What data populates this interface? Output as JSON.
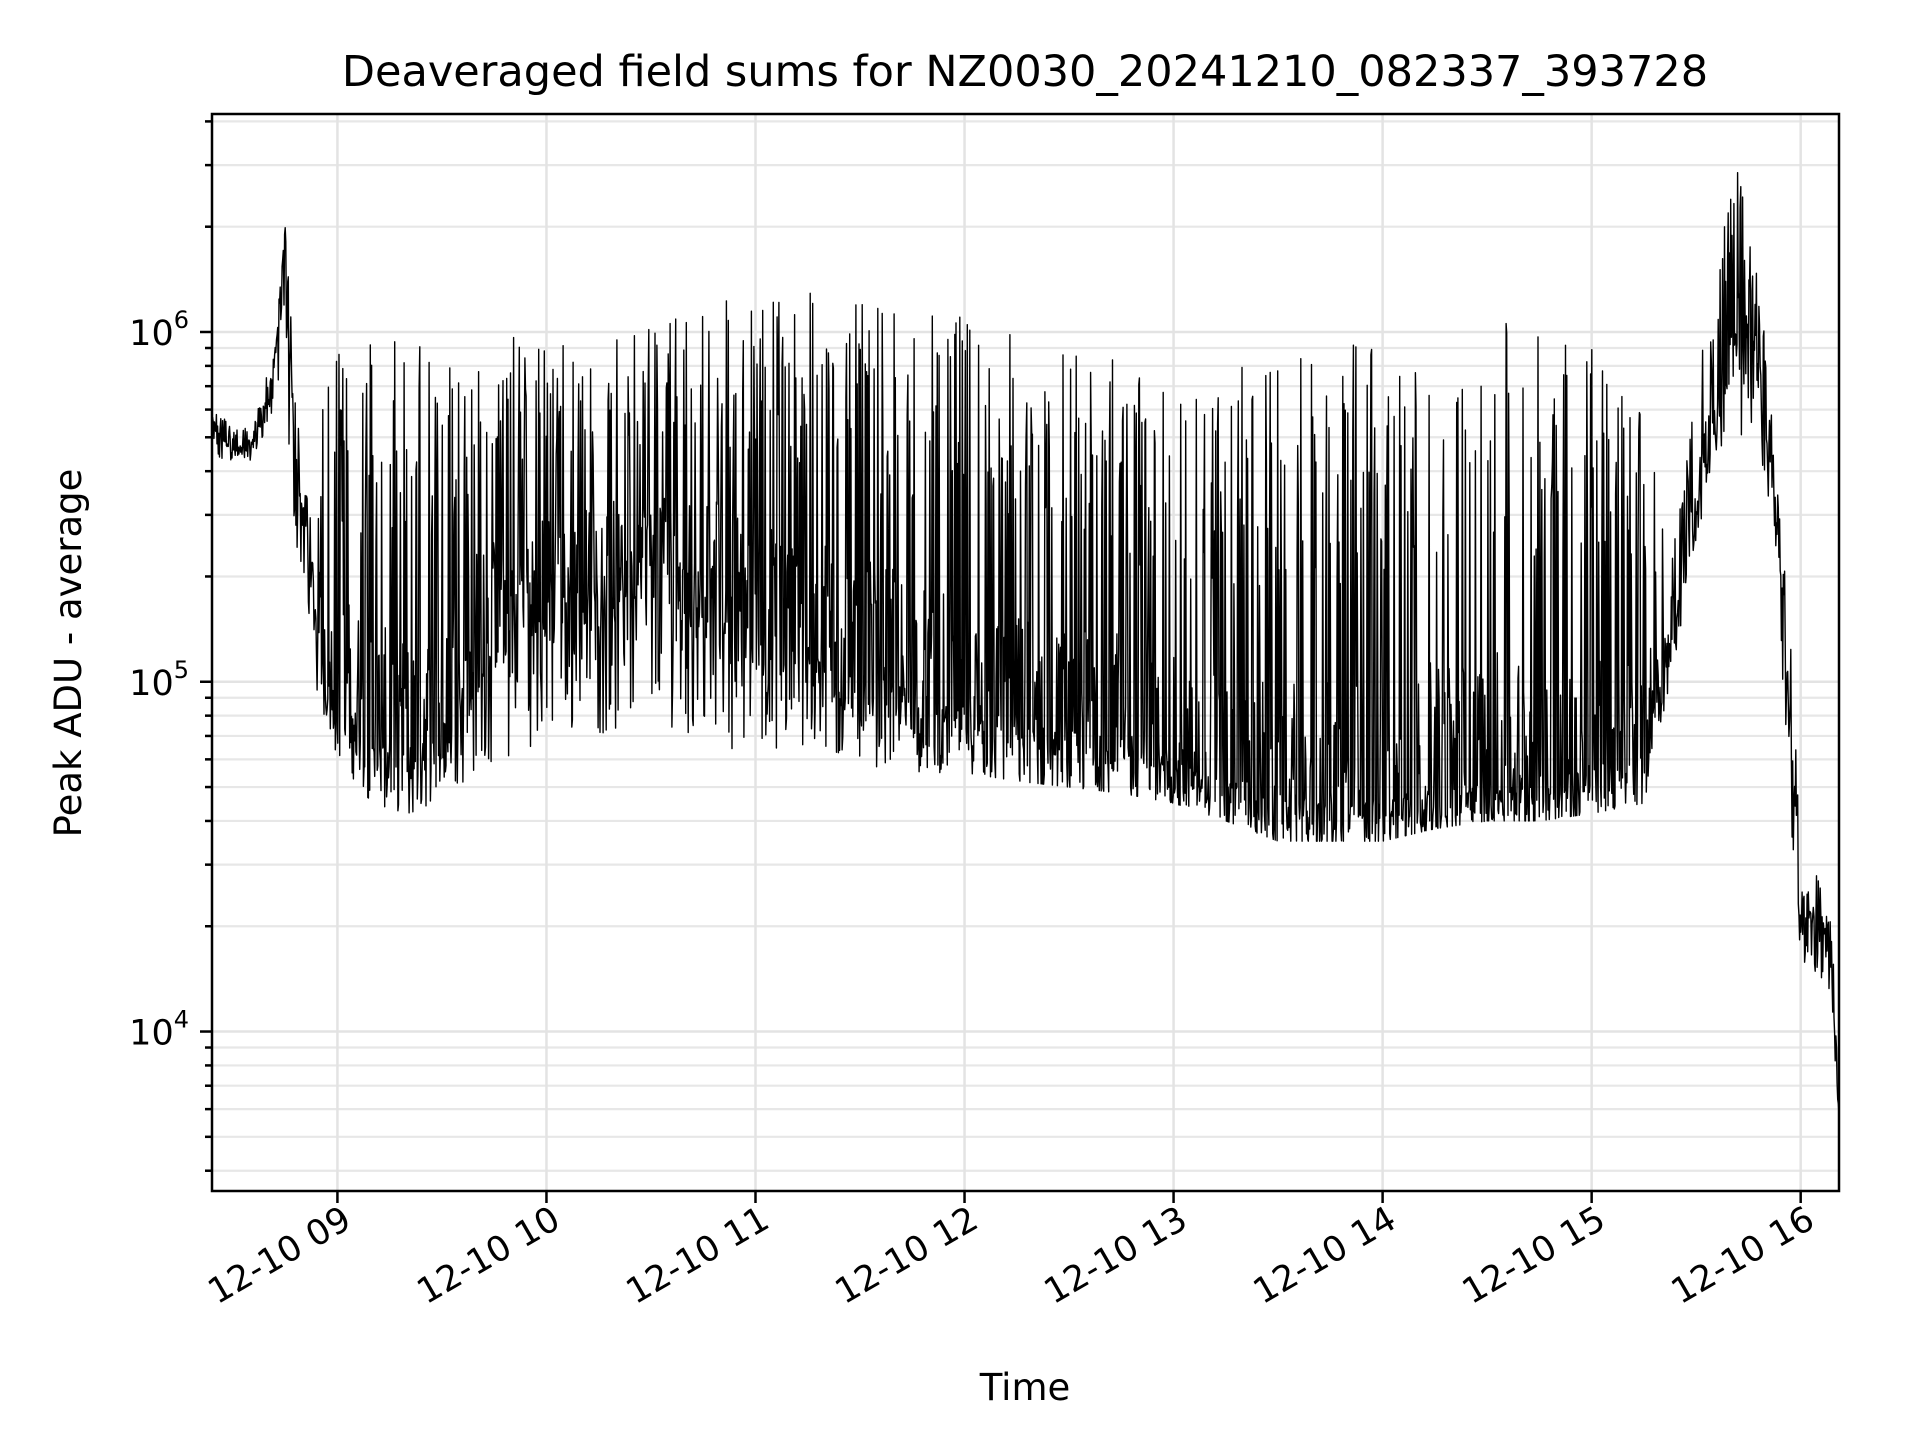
{
  "chart_data": {
    "type": "line",
    "title": "Deaveraged field sums for NZ0030_20241210_082337_393728",
    "xlabel": "Time",
    "ylabel": "Peak ADU - average",
    "y_scale": "log",
    "ylim": [
      3500,
      4200000
    ],
    "xlim": [
      "2024-12-10 08:24",
      "2024-12-10 16:11"
    ],
    "x_ticks": [
      "12-10 09",
      "12-10 10",
      "12-10 11",
      "12-10 12",
      "12-10 13",
      "12-10 14",
      "12-10 15",
      "12-10 16"
    ],
    "y_ticks": [
      {
        "base": "10",
        "exp": "4",
        "value": 10000
      },
      {
        "base": "10",
        "exp": "5",
        "value": 100000
      },
      {
        "base": "10",
        "exp": "6",
        "value": 1000000
      }
    ],
    "grid": true,
    "line_color": "#000000",
    "series": [
      {
        "x": [
          "2024-12-10 08:24",
          "2024-12-10 08:30",
          "2024-12-10 08:36",
          "2024-12-10 08:42",
          "2024-12-10 08:45",
          "2024-12-10 08:48",
          "2024-12-10 08:51",
          "2024-12-10 08:54",
          "2024-12-10 09:00",
          "2024-12-10 09:10",
          "2024-12-10 09:20",
          "2024-12-10 09:30",
          "2024-12-10 09:40",
          "2024-12-10 09:50",
          "2024-12-10 10:00",
          "2024-12-10 10:15",
          "2024-12-10 10:30",
          "2024-12-10 10:45",
          "2024-12-10 11:00",
          "2024-12-10 11:15",
          "2024-12-10 11:30",
          "2024-12-10 11:45",
          "2024-12-10 12:00",
          "2024-12-10 12:15",
          "2024-12-10 12:30",
          "2024-12-10 12:45",
          "2024-12-10 13:00",
          "2024-12-10 13:15",
          "2024-12-10 13:30",
          "2024-12-10 13:45",
          "2024-12-10 14:00",
          "2024-12-10 14:15",
          "2024-12-10 14:30",
          "2024-12-10 14:45",
          "2024-12-10 15:00",
          "2024-12-10 15:15",
          "2024-12-10 15:25",
          "2024-12-10 15:35",
          "2024-12-10 15:42",
          "2024-12-10 15:48",
          "2024-12-10 15:53",
          "2024-12-10 15:58",
          "2024-12-10 16:00",
          "2024-12-10 16:05",
          "2024-12-10 16:09",
          "2024-12-10 16:11"
        ],
        "y": [
          550000,
          460000,
          480000,
          800000,
          2000000,
          400000,
          270000,
          150000,
          110000,
          80000,
          70000,
          90000,
          150000,
          180000,
          200000,
          220000,
          250000,
          230000,
          180000,
          160000,
          130000,
          110000,
          90000,
          85000,
          80000,
          75000,
          65000,
          55000,
          52000,
          48000,
          50000,
          55000,
          58000,
          60000,
          62000,
          70000,
          180000,
          600000,
          1100000,
          800000,
          300000,
          60000,
          20000,
          22000,
          16000,
          5000
        ],
        "low": [
          400000,
          430000,
          430000,
          600000,
          600000,
          250000,
          180000,
          90000,
          60000,
          45000,
          42000,
          45000,
          55000,
          60000,
          70000,
          70000,
          75000,
          70000,
          60000,
          60000,
          58000,
          55000,
          55000,
          52000,
          50000,
          48000,
          45000,
          40000,
          35000,
          35000,
          35000,
          38000,
          40000,
          40000,
          42000,
          45000,
          130000,
          450000,
          500000,
          500000,
          200000,
          30000,
          15000,
          14000,
          12000,
          4000
        ],
        "high": [
          650000,
          520000,
          550000,
          900000,
          2000000,
          700000,
          350000,
          600000,
          900000,
          950000,
          950000,
          950000,
          1000000,
          1050000,
          1000000,
          1000000,
          1100000,
          1250000,
          1300000,
          1300000,
          1200000,
          1200000,
          1100000,
          1000000,
          900000,
          850000,
          700000,
          800000,
          800000,
          900000,
          1000000,
          1100000,
          1100000,
          1000000,
          1000000,
          600000,
          300000,
          1500000,
          3000000,
          1500000,
          400000,
          100000,
          28000,
          28000,
          20000,
          6000
        ]
      }
    ]
  }
}
